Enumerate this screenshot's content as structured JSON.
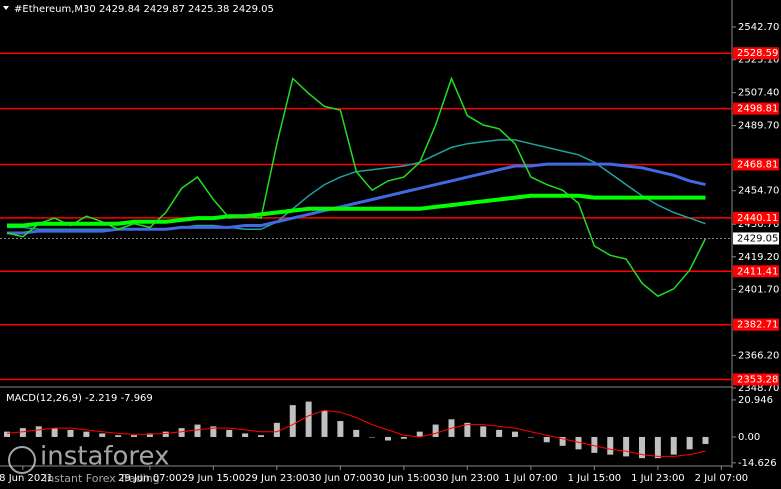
{
  "chart_data": [
    {
      "type": "line",
      "title": "#Ethereum,M30  2429.84 2429.87 2425.38 2429.05",
      "categories": [
        null,
        "28 Jun 2021",
        null,
        null,
        null,
        null,
        null,
        null,
        null,
        "29 Jun 07:00",
        null,
        null,
        null,
        "29 Jun 15:00",
        null,
        null,
        null,
        "29 Jun 23:00",
        null,
        null,
        null,
        "30 Jun 07:00",
        null,
        null,
        null,
        "30 Jun 15:00",
        null,
        null,
        null,
        "30 Jun 23:00",
        null,
        null,
        null,
        "1 Jul 07:00",
        null,
        null,
        null,
        "1 Jul 15:00",
        null,
        null,
        null,
        "1 Jul 23:00",
        null,
        null,
        null,
        "2 Jul 07:00"
      ],
      "series": [
        {
          "color": "#22dd22",
          "width": 1.5,
          "values": [
            2432,
            2430,
            2437,
            2440,
            2436,
            2441,
            2438,
            2434,
            2437,
            2435,
            2443,
            2456,
            2462,
            2450,
            2440,
            2441,
            2440,
            2480,
            2515,
            2507,
            2500,
            2498,
            2465,
            2455,
            2460,
            2462,
            2470,
            2490,
            2515,
            2495,
            2490,
            2488,
            2480,
            2462,
            2458,
            2455,
            2448,
            2425,
            2420,
            2418,
            2405,
            2398,
            2402,
            2412,
            2429.05,
            null
          ]
        },
        {
          "color": "#00ff00",
          "width": 4,
          "values": [
            2436,
            2436,
            2437,
            2437,
            2437,
            2437,
            2437,
            2437,
            2438,
            2438,
            2438,
            2439,
            2440,
            2440,
            2441,
            2441,
            2442,
            2443,
            2444,
            2445,
            2445,
            2445,
            2445,
            2445,
            2445,
            2445,
            2445,
            2446,
            2447,
            2448,
            2449,
            2450,
            2451,
            2452,
            2452,
            2452,
            2452,
            2451,
            2451,
            2451,
            2451,
            2451,
            2451,
            2451,
            2451,
            null
          ]
        },
        {
          "color": "#4169e1",
          "width": 3,
          "values": [
            2432,
            2432,
            2433,
            2433,
            2433,
            2433,
            2433,
            2434,
            2434,
            2434,
            2434,
            2435,
            2435,
            2435,
            2435,
            2436,
            2436,
            2438,
            2440,
            2442,
            2444,
            2446,
            2448,
            2450,
            2452,
            2454,
            2456,
            2458,
            2460,
            2462,
            2464,
            2466,
            2468,
            2468,
            2469,
            2469,
            2469,
            2469,
            2469,
            2468,
            2467,
            2465,
            2463,
            2460,
            2458,
            null
          ]
        },
        {
          "color": "#20a0a0",
          "width": 1.5,
          "values": [
            2435,
            2435,
            2434,
            2434,
            2434,
            2434,
            2434,
            2434,
            2434,
            2434,
            2434,
            2435,
            2436,
            2436,
            2435,
            2434,
            2434,
            2438,
            2445,
            2452,
            2458,
            2462,
            2465,
            2466,
            2467,
            2468,
            2470,
            2474,
            2478,
            2480,
            2481,
            2482,
            2482,
            2480,
            2478,
            2476,
            2474,
            2470,
            2464,
            2458,
            2452,
            2447,
            2443,
            2440,
            2437,
            null
          ]
        }
      ],
      "levels": {
        "color": "#ff0000",
        "values": [
          2528.59,
          2498.81,
          2468.81,
          2440.11,
          2411.41,
          2382.71,
          2353.28
        ]
      },
      "ylim": [
        2350.3,
        2557.2
      ],
      "yticks": [
        {
          "value": 2542.7,
          "label": "2542.70"
        },
        {
          "value": 2525.1,
          "label": "2525.10"
        },
        {
          "value": 2507.4,
          "label": "2507.40"
        },
        {
          "value": 2489.7,
          "label": "2489.70"
        },
        {
          "value": 2454.7,
          "label": "2454.70"
        },
        {
          "value": 2436.7,
          "label": "2436.70"
        },
        {
          "value": 2419.2,
          "label": "2419.20"
        },
        {
          "value": 2401.7,
          "label": "2401.70"
        },
        {
          "value": 2366.2,
          "label": "2366.20"
        },
        {
          "value": 2348.7,
          "label": "2348.70"
        }
      ]
    },
    {
      "type": "bar",
      "title": "MACD(12,26,9) -2.219 -7.969",
      "color": "#c0c0c0",
      "values": [
        3,
        5,
        6,
        5,
        4,
        3,
        2,
        1,
        1,
        2,
        3,
        5,
        7,
        6,
        4,
        2,
        1,
        8,
        18,
        20,
        15,
        9,
        4,
        0,
        -2,
        -1,
        3,
        7,
        10,
        8,
        6,
        4,
        3,
        0,
        -3,
        -5,
        -7,
        -9,
        -10,
        -11,
        -12,
        -12,
        -10,
        -7,
        -4,
        null
      ],
      "series": [
        {
          "color": "#ff0000",
          "values": [
            2,
            3,
            4,
            5,
            5,
            4,
            3,
            2,
            1.5,
            1.5,
            2,
            3,
            4,
            5,
            5,
            4,
            3,
            3,
            7,
            12,
            15,
            14,
            11,
            7,
            4,
            1,
            0,
            2,
            5,
            7,
            7,
            6,
            5,
            3,
            1,
            -1,
            -3,
            -5,
            -7,
            -8,
            -10,
            -11,
            -11,
            -10,
            -8,
            null
          ]
        }
      ],
      "ylim": [
        -15.3,
        26.0
      ],
      "yticks": [
        20.946,
        {
          "value": 0,
          "label": "0.00"
        },
        -14.626
      ]
    }
  ],
  "watermark": {
    "brand": "instaforex",
    "tagline": "Instant Forex Trading"
  }
}
